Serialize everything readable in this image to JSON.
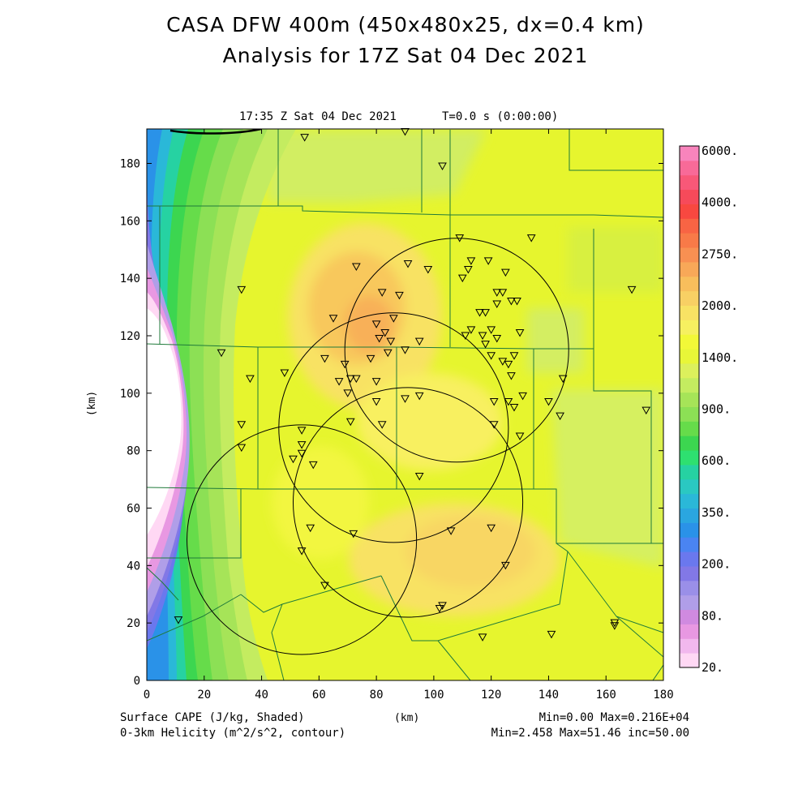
{
  "title_line1": "CASA DFW 400m (450x480x25, dx=0.4 km)",
  "title_line2": "Analysis for 17Z Sat 04 Dec 2021",
  "plot_time": "17:35 Z Sat 04 Dec 2021",
  "plot_tstep": "T=0.0 s (0:00:00)",
  "axes": {
    "xlabel": "(km)",
    "ylabel": "(km)",
    "xlim": [
      0,
      180
    ],
    "ylim": [
      0,
      192
    ],
    "xticks": [
      "0",
      "20",
      "40",
      "60",
      "80",
      "100",
      "120",
      "140",
      "160",
      "180"
    ],
    "yticks": [
      "0",
      "20",
      "40",
      "60",
      "80",
      "100",
      "120",
      "140",
      "160",
      "180"
    ]
  },
  "footer": {
    "shaded_label": "Surface CAPE (J/kg, Shaded)",
    "contour_label": "0-3km Helicity (m^2/s^2, contour)",
    "shaded_stats": "Min=0.00 Max=0.216E+04",
    "contour_stats": "Min=2.458 Max=51.46 inc=50.00"
  },
  "colorbar": {
    "labels": [
      "6000.",
      "4000.",
      "2750.",
      "2000.",
      "1400.",
      "900.",
      "600.",
      "350.",
      "200.",
      "80.",
      "20."
    ],
    "colors": [
      "#ffd8f4",
      "#f2b8ee",
      "#e898e2",
      "#d08ae0",
      "#b09ee8",
      "#9a8fe8",
      "#8278e6",
      "#6a78ee",
      "#4a84f2",
      "#2a92e8",
      "#2aa6e0",
      "#2ab8d8",
      "#2ac8c2",
      "#26d2a2",
      "#2ee070",
      "#3cd650",
      "#66dc4a",
      "#8ce055",
      "#a6e458",
      "#c4ec60",
      "#dcf05c",
      "#e8f638",
      "#f2f838",
      "#f6f060",
      "#f8e264",
      "#f8d064",
      "#f8be5c",
      "#f8a858",
      "#f89052",
      "#f87a48",
      "#f86444",
      "#f84840",
      "#f64a5a",
      "#f85878",
      "#f86a98",
      "#f884bc"
    ]
  },
  "chart_data": {
    "type": "heatmap",
    "variable": "Surface CAPE (J/kg)",
    "overlay": "0-3km Helicity (m^2/s^2)",
    "min": 0.0,
    "max": 2160,
    "radar_range_circles_km": [
      {
        "cx": 108,
        "cy": 115,
        "r": 39
      },
      {
        "cx": 86,
        "cy": 88,
        "r": 40
      },
      {
        "cx": 91,
        "cy": 62,
        "r": 40
      },
      {
        "cx": 54,
        "cy": 49,
        "r": 40
      }
    ],
    "stations_km": [
      [
        55,
        189
      ],
      [
        90,
        191
      ],
      [
        103,
        179
      ],
      [
        109,
        154
      ],
      [
        134,
        154
      ],
      [
        112,
        143
      ],
      [
        113,
        146
      ],
      [
        119,
        146
      ],
      [
        125,
        142
      ],
      [
        110,
        140
      ],
      [
        122,
        135
      ],
      [
        124,
        135
      ],
      [
        129,
        132
      ],
      [
        122,
        131
      ],
      [
        127,
        132
      ],
      [
        116,
        128
      ],
      [
        118,
        128
      ],
      [
        120,
        122
      ],
      [
        113,
        122
      ],
      [
        111,
        120
      ],
      [
        117,
        120
      ],
      [
        118,
        117
      ],
      [
        130,
        121
      ],
      [
        122,
        119
      ],
      [
        128,
        113
      ],
      [
        127,
        106
      ],
      [
        126,
        110
      ],
      [
        124,
        111
      ],
      [
        120,
        113
      ],
      [
        131,
        99
      ],
      [
        126,
        97
      ],
      [
        121,
        97
      ],
      [
        140,
        97
      ],
      [
        144,
        92
      ],
      [
        128,
        95
      ],
      [
        130,
        85
      ],
      [
        121,
        89
      ],
      [
        145,
        105
      ],
      [
        169,
        136
      ],
      [
        174,
        94
      ],
      [
        33,
        136
      ],
      [
        26,
        114
      ],
      [
        36,
        105
      ],
      [
        48,
        107
      ],
      [
        62,
        112
      ],
      [
        65,
        126
      ],
      [
        67,
        104
      ],
      [
        71,
        105
      ],
      [
        73,
        105
      ],
      [
        70,
        100
      ],
      [
        69,
        110
      ],
      [
        73,
        144
      ],
      [
        80,
        124
      ],
      [
        81,
        119
      ],
      [
        83,
        121
      ],
      [
        85,
        118
      ],
      [
        86,
        126
      ],
      [
        84,
        114
      ],
      [
        78,
        112
      ],
      [
        80,
        104
      ],
      [
        82,
        135
      ],
      [
        88,
        134
      ],
      [
        91,
        145
      ],
      [
        98,
        143
      ],
      [
        90,
        115
      ],
      [
        95,
        118
      ],
      [
        90,
        98
      ],
      [
        95,
        99
      ],
      [
        80,
        97
      ],
      [
        82,
        89
      ],
      [
        71,
        90
      ],
      [
        54,
        87
      ],
      [
        54,
        79
      ],
      [
        54,
        82
      ],
      [
        51,
        77
      ],
      [
        58,
        75
      ],
      [
        33,
        89
      ],
      [
        33,
        81
      ],
      [
        95,
        71
      ],
      [
        57,
        53
      ],
      [
        72,
        51
      ],
      [
        106,
        52
      ],
      [
        120,
        53
      ],
      [
        125,
        40
      ],
      [
        62,
        33
      ],
      [
        54,
        45
      ],
      [
        102,
        25
      ],
      [
        103,
        26
      ],
      [
        141,
        16
      ],
      [
        163,
        20
      ],
      [
        163,
        19
      ],
      [
        117,
        15
      ],
      [
        11,
        21
      ]
    ]
  }
}
